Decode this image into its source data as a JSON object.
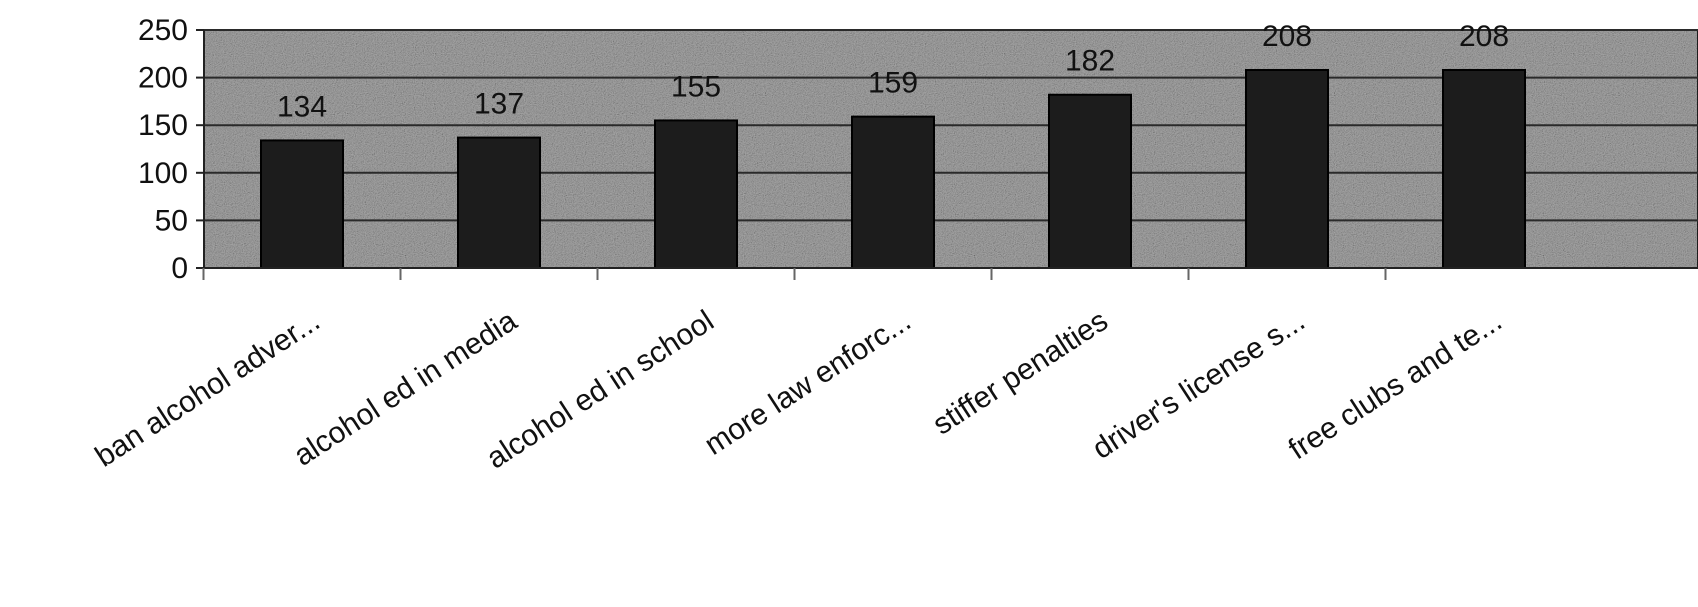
{
  "chart_data": {
    "type": "bar",
    "title": "",
    "xlabel": "",
    "ylabel": "",
    "categories": [
      "ban alcohol adver...",
      "alcohol ed in media",
      "alcohol ed in school",
      "more law enforc...",
      "stiffer penalties",
      "driver's license s...",
      "free clubs and te..."
    ],
    "values": [
      134,
      137,
      155,
      159,
      182,
      208,
      208
    ],
    "data_labels": [
      "134",
      "137",
      "155",
      "159",
      "182",
      "208",
      "208"
    ],
    "ylim": [
      0,
      250
    ],
    "yticks": [
      0,
      50,
      100,
      150,
      200,
      250
    ],
    "grid": true,
    "legend": "none",
    "colors": {
      "plot_background": "#a9a9a9",
      "bar_fill": "#1c1c1c",
      "bar_stroke": "#000000",
      "gridline": "#2a2a2a",
      "text": "#111111"
    }
  }
}
